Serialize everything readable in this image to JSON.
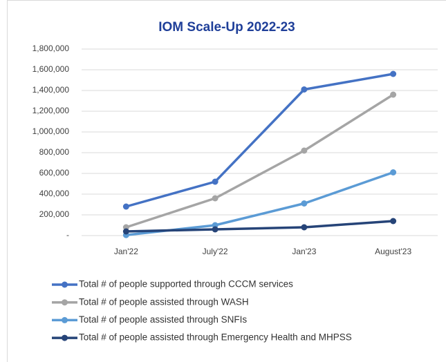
{
  "chart_data": {
    "type": "line",
    "title": "IOM Scale-Up 2022-23",
    "categories": [
      "Jan'22",
      "July'22",
      "Jan'23",
      "August'23"
    ],
    "series": [
      {
        "name": "Total # of people supported through CCCM services",
        "color": "#4472c4",
        "values": [
          280000,
          520000,
          1410000,
          1560000
        ]
      },
      {
        "name": "Total # of people assisted through WASH",
        "color": "#a5a5a5",
        "values": [
          80000,
          360000,
          820000,
          1360000
        ]
      },
      {
        "name": "Total # of people assisted through SNFIs",
        "color": "#5b9bd5",
        "values": [
          5000,
          100000,
          310000,
          610000
        ]
      },
      {
        "name": "Total # of people assisted through Emergency Health and MHPSS",
        "color": "#264478",
        "values": [
          40000,
          60000,
          80000,
          140000
        ]
      }
    ],
    "ylim": [
      0,
      1800000
    ],
    "yticks": [
      {
        "value": 0,
        "label": "-"
      },
      {
        "value": 200000,
        "label": "200,000"
      },
      {
        "value": 400000,
        "label": "400,000"
      },
      {
        "value": 600000,
        "label": "600,000"
      },
      {
        "value": 800000,
        "label": "800,000"
      },
      {
        "value": 1000000,
        "label": "1,000,000"
      },
      {
        "value": 1200000,
        "label": "1,200,000"
      },
      {
        "value": 1400000,
        "label": "1,400,000"
      },
      {
        "value": 1600000,
        "label": "1,600,000"
      },
      {
        "value": 1800000,
        "label": "1,800,000"
      }
    ],
    "grid": true
  }
}
